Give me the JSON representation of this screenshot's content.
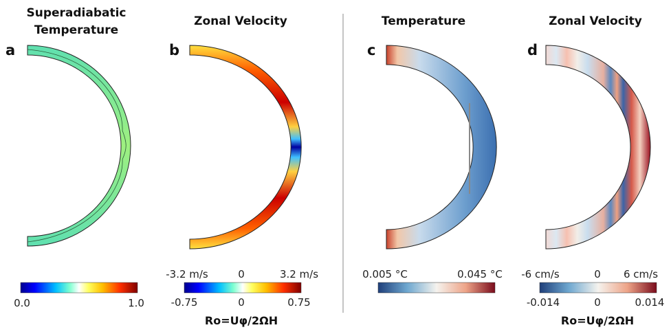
{
  "panels": [
    {
      "label": "a",
      "title_lines": [
        "Superadiabatic",
        "Temperature"
      ],
      "colorbar": {
        "palette": "jet",
        "ticks_below": [
          "0.0",
          "1.0"
        ],
        "ticks_above": [],
        "axis_label": ""
      }
    },
    {
      "label": "b",
      "title_lines": [
        "Zonal Velocity"
      ],
      "colorbar": {
        "palette": "jet",
        "ticks_above": [
          "-3.2 m/s",
          "0",
          "3.2 m/s"
        ],
        "ticks_below": [
          "-0.75",
          "0",
          "0.75"
        ],
        "axis_label": "Ro=Uφ/2ΩH"
      }
    },
    {
      "label": "c",
      "title_lines": [
        "Temperature"
      ],
      "colorbar": {
        "palette": "diverging",
        "ticks_above": [
          "0.005 °C",
          "0.045 °C"
        ],
        "ticks_below": [],
        "axis_label": ""
      }
    },
    {
      "label": "d",
      "title_lines": [
        "Zonal Velocity"
      ],
      "colorbar": {
        "palette": "diverging",
        "ticks_above": [
          "-6 cm/s",
          "0",
          "6 cm/s"
        ],
        "ticks_below": [
          "-0.014",
          "0",
          "0.014"
        ],
        "axis_label": "Ro=Uφ/2ΩH"
      }
    }
  ],
  "colors": {
    "divider": "#888888",
    "shell_outline": "#222222"
  }
}
